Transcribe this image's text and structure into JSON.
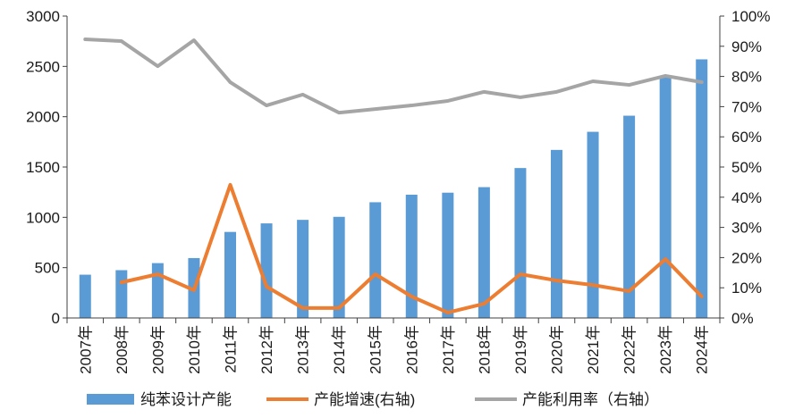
{
  "chart_data": {
    "type": "bar",
    "categories": [
      "2007年",
      "2008年",
      "2009年",
      "2010年",
      "2011年",
      "2012年",
      "2013年",
      "2014年",
      "2015年",
      "2016年",
      "2017年",
      "2018年",
      "2019年",
      "2020年",
      "2021年",
      "2022年",
      "2023年",
      "2024年"
    ],
    "series": [
      {
        "name": "纯苯设计产能",
        "type": "bar",
        "axis": "left",
        "color": "#5B9BD5",
        "values": [
          430,
          475,
          545,
          595,
          855,
          940,
          975,
          1005,
          1150,
          1225,
          1245,
          1300,
          1490,
          1670,
          1850,
          2010,
          2400,
          2570
        ]
      },
      {
        "name": "产能增速(右轴)",
        "type": "line",
        "axis": "right",
        "color": "#ED7D31",
        "values": [
          null,
          11.8,
          14.5,
          9.2,
          44.1,
          10.4,
          3.3,
          3.3,
          14.5,
          7.1,
          1.8,
          4.7,
          14.5,
          12.4,
          10.9,
          8.9,
          19.5,
          7.1
        ]
      },
      {
        "name": "产能利用率（右轴）",
        "type": "line",
        "axis": "right",
        "color": "#A5A5A5",
        "values": [
          92.3,
          91.7,
          83.4,
          92.0,
          78.1,
          70.4,
          74.0,
          68.0,
          69.2,
          70.4,
          71.9,
          74.9,
          73.1,
          74.9,
          78.4,
          77.2,
          80.2,
          78.1
        ]
      }
    ],
    "y_left": {
      "range": [
        0,
        3000
      ],
      "tick_values": [
        0,
        500,
        1000,
        1500,
        2000,
        2500,
        3000
      ],
      "tick_labels": [
        "0",
        "500",
        "1000",
        "1500",
        "2000",
        "2500",
        "3000"
      ]
    },
    "y_right": {
      "range": [
        0,
        100
      ],
      "tick_values": [
        0,
        10,
        20,
        30,
        40,
        50,
        60,
        70,
        80,
        90,
        100
      ],
      "tick_labels": [
        "0%",
        "10%",
        "20%",
        "30%",
        "40%",
        "50%",
        "60%",
        "70%",
        "80%",
        "90%",
        "100%"
      ]
    },
    "grid": false,
    "legend": "bottom",
    "axis_color": "#404040"
  }
}
